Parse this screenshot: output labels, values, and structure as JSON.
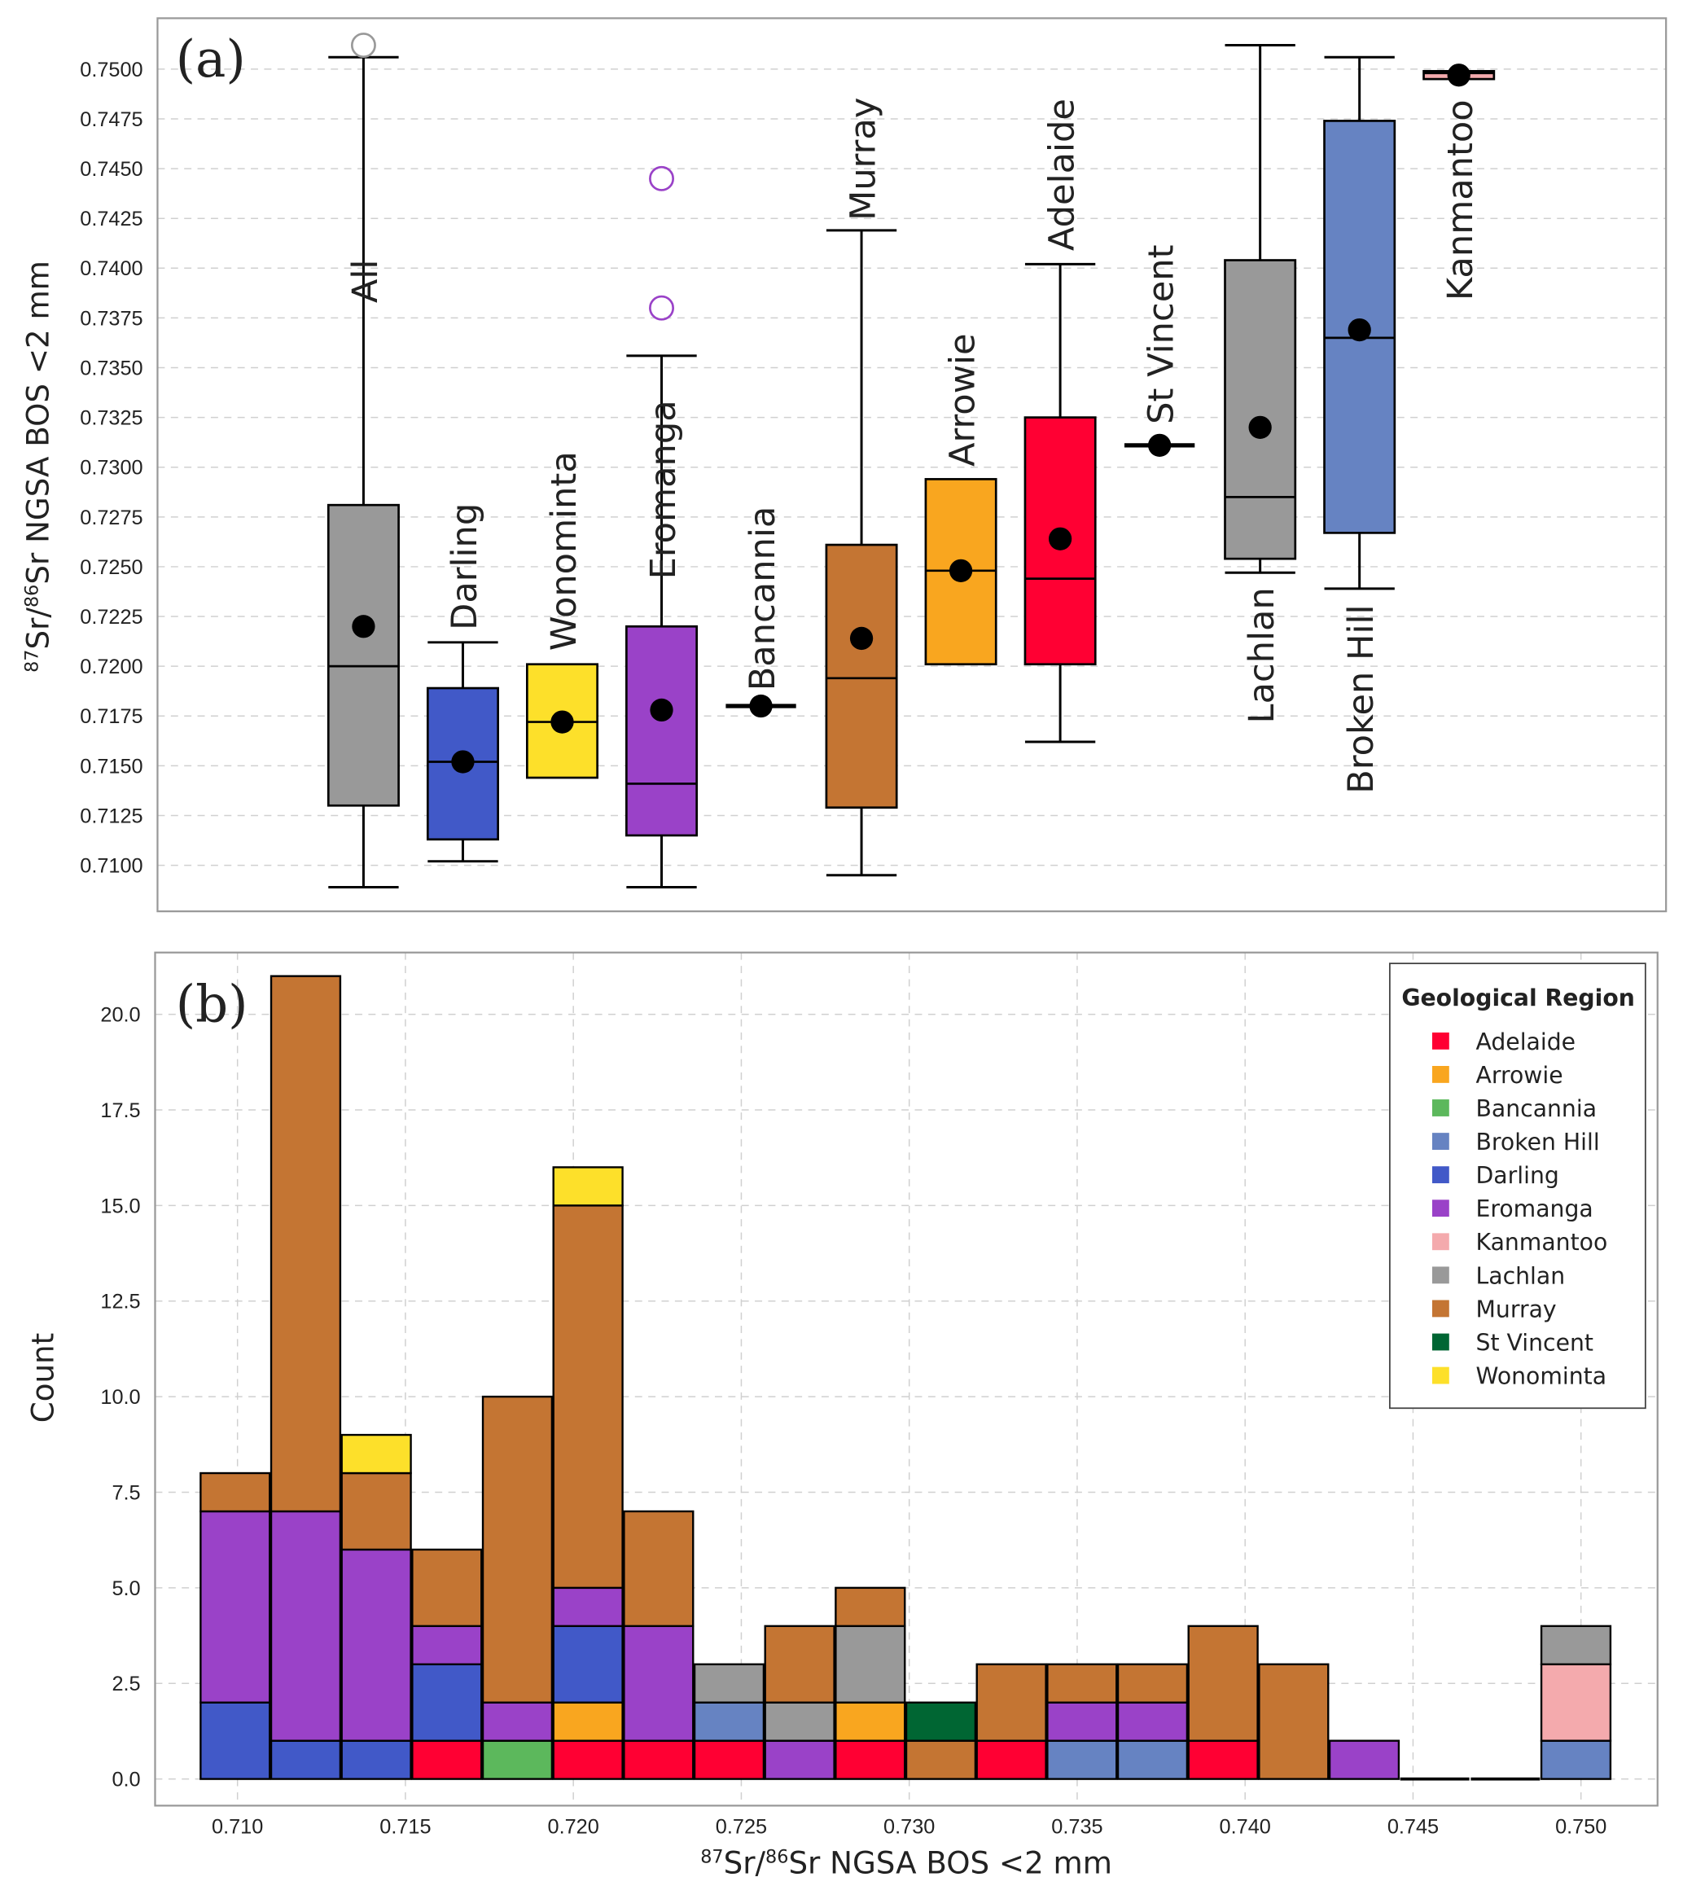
{
  "chart_data": [
    {
      "type": "box",
      "panel_label": "(a)",
      "ylabel_parts": {
        "sup1": "87",
        "mid": "Sr/",
        "sup2": "86",
        "rest": "Sr NGSA BOS <2 mm"
      },
      "ylim": [
        0.7085,
        0.752
      ],
      "yticks": [
        "0.7100",
        "0.7125",
        "0.7150",
        "0.7175",
        "0.7200",
        "0.7225",
        "0.7250",
        "0.7275",
        "0.7300",
        "0.7325",
        "0.7350",
        "0.7375",
        "0.7400",
        "0.7425",
        "0.7450",
        "0.7475",
        "0.7500"
      ],
      "grid": true,
      "groups": [
        {
          "name": "All",
          "color": "#999999",
          "whislo": 0.7089,
          "q1": 0.713,
          "med": 0.72,
          "q3": 0.7281,
          "whishi": 0.7506,
          "mean": 0.722,
          "outliers": [
            0.7512
          ],
          "outlier_color": "#999999"
        },
        {
          "name": "Darling",
          "color": "#4159c8",
          "whislo": 0.7102,
          "q1": 0.7113,
          "med": 0.7152,
          "q3": 0.7189,
          "whishi": 0.7212,
          "mean": 0.7152,
          "outliers": []
        },
        {
          "name": "Wonominta",
          "color": "#fde02a",
          "whislo": 0.7144,
          "q1": 0.7144,
          "med": 0.7172,
          "q3": 0.7201,
          "whishi": 0.7201,
          "mean": 0.7172,
          "outliers": []
        },
        {
          "name": "Eromanga",
          "color": "#9a42c8",
          "whislo": 0.7089,
          "q1": 0.7115,
          "med": 0.7141,
          "q3": 0.722,
          "whishi": 0.7356,
          "mean": 0.7178,
          "outliers": [
            0.7445,
            0.738
          ],
          "outlier_color": "#9a42c8"
        },
        {
          "name": "Bancannia",
          "color": "#5cb85c",
          "whislo": 0.718,
          "q1": 0.718,
          "med": 0.718,
          "q3": 0.718,
          "whishi": 0.718,
          "mean": 0.718,
          "outliers": []
        },
        {
          "name": "Murray",
          "color": "#c47533",
          "whislo": 0.7095,
          "q1": 0.7129,
          "med": 0.7194,
          "q3": 0.7261,
          "whishi": 0.7419,
          "mean": 0.7214,
          "outliers": []
        },
        {
          "name": "Arrowie",
          "color": "#f9a61f",
          "whislo": 0.7201,
          "q1": 0.7201,
          "med": 0.7248,
          "q3": 0.7294,
          "whishi": 0.7294,
          "mean": 0.7248,
          "outliers": []
        },
        {
          "name": "Adelaide",
          "color": "#ff0033",
          "whislo": 0.7162,
          "q1": 0.7201,
          "med": 0.7244,
          "q3": 0.7325,
          "whishi": 0.7402,
          "mean": 0.7264,
          "outliers": []
        },
        {
          "name": "St Vincent",
          "color": "#006633",
          "whislo": 0.7311,
          "q1": 0.7311,
          "med": 0.7311,
          "q3": 0.7311,
          "whishi": 0.7311,
          "mean": 0.7311,
          "outliers": []
        },
        {
          "name": "Lachlan",
          "color": "#999999",
          "whislo": 0.7247,
          "q1": 0.7254,
          "med": 0.7285,
          "q3": 0.7404,
          "whishi": 0.7512,
          "mean": 0.732,
          "outliers": []
        },
        {
          "name": "Broken Hill",
          "color": "#6683c2",
          "whislo": 0.7239,
          "q1": 0.7267,
          "med": 0.7365,
          "q3": 0.7474,
          "whishi": 0.7506,
          "mean": 0.7369,
          "outliers": []
        },
        {
          "name": "Kanmantoo",
          "color": "#f4aaad",
          "whislo": 0.7495,
          "q1": 0.7495,
          "med": 0.7498,
          "q3": 0.7499,
          "whishi": 0.7499,
          "mean": 0.7497,
          "outliers": []
        }
      ]
    },
    {
      "type": "bar",
      "stacked": true,
      "panel_label": "(b)",
      "ylabel": "Count",
      "xlabel_parts": {
        "sup1": "87",
        "mid": "Sr/",
        "sup2": "86",
        "rest": "Sr NGSA BOS <2 mm"
      },
      "xlim": [
        0.7075,
        0.7522
      ],
      "ylim": [
        -0.8,
        21.5
      ],
      "xticks": [
        "0.710",
        "0.715",
        "0.720",
        "0.725",
        "0.730",
        "0.735",
        "0.740",
        "0.745",
        "0.750"
      ],
      "yticks": [
        "0.0",
        "2.5",
        "5.0",
        "7.5",
        "10.0",
        "12.5",
        "15.0",
        "17.5",
        "20.0"
      ],
      "grid": true,
      "bin_start": 0.70888,
      "bin_width": 0.002101,
      "legend": {
        "title": "Geological Region",
        "position": "top-right"
      },
      "series": [
        {
          "name": "Adelaide",
          "color": "#ff0033",
          "values": [
            0,
            0,
            0,
            1,
            0,
            1,
            1,
            1,
            0,
            1,
            0,
            1,
            0,
            0,
            1,
            0,
            0,
            0,
            0,
            0
          ]
        },
        {
          "name": "Arrowie",
          "color": "#f9a61f",
          "values": [
            0,
            0,
            0,
            0,
            0,
            1,
            0,
            0,
            0,
            1,
            0,
            0,
            0,
            0,
            0,
            0,
            0,
            0,
            0,
            0
          ]
        },
        {
          "name": "Bancannia",
          "color": "#5cb85c",
          "values": [
            0,
            0,
            0,
            0,
            1,
            0,
            0,
            0,
            0,
            0,
            0,
            0,
            0,
            0,
            0,
            0,
            0,
            0,
            0,
            0
          ]
        },
        {
          "name": "Broken Hill",
          "color": "#6683c2",
          "values": [
            0,
            0,
            0,
            0,
            0,
            0,
            0,
            1,
            0,
            0,
            0,
            0,
            1,
            1,
            0,
            0,
            0,
            0,
            0,
            1
          ]
        },
        {
          "name": "Darling",
          "color": "#4159c8",
          "values": [
            2,
            1,
            1,
            2,
            0,
            2,
            0,
            0,
            0,
            0,
            0,
            0,
            0,
            0,
            0,
            0,
            0,
            0,
            0,
            0
          ]
        },
        {
          "name": "Eromanga",
          "color": "#9a42c8",
          "values": [
            5,
            6,
            5,
            1,
            1,
            1,
            3,
            0,
            1,
            0,
            0,
            0,
            1,
            1,
            0,
            0,
            1,
            0,
            0,
            0
          ]
        },
        {
          "name": "Kanmantoo",
          "color": "#f4aaad",
          "values": [
            0,
            0,
            0,
            0,
            0,
            0,
            0,
            0,
            0,
            0,
            0,
            0,
            0,
            0,
            0,
            0,
            0,
            0,
            0,
            2
          ]
        },
        {
          "name": "Lachlan",
          "color": "#999999",
          "values": [
            0,
            0,
            0,
            0,
            0,
            0,
            0,
            1,
            1,
            2,
            0,
            0,
            0,
            0,
            0,
            0,
            0,
            0,
            0,
            1
          ]
        },
        {
          "name": "Murray",
          "color": "#c47533",
          "values": [
            1,
            14,
            2,
            2,
            8,
            10,
            3,
            0,
            2,
            1,
            1,
            2,
            1,
            1,
            3,
            3,
            0,
            0,
            0,
            0
          ]
        },
        {
          "name": "St Vincent",
          "color": "#006633",
          "values": [
            0,
            0,
            0,
            0,
            0,
            0,
            0,
            0,
            0,
            0,
            1,
            0,
            0,
            0,
            0,
            0,
            0,
            0,
            0,
            0
          ]
        },
        {
          "name": "Wonominta",
          "color": "#fde02a",
          "values": [
            0,
            0,
            1,
            0,
            0,
            1,
            0,
            0,
            0,
            0,
            0,
            0,
            0,
            0,
            0,
            0,
            0,
            0,
            0,
            0
          ]
        }
      ]
    }
  ]
}
